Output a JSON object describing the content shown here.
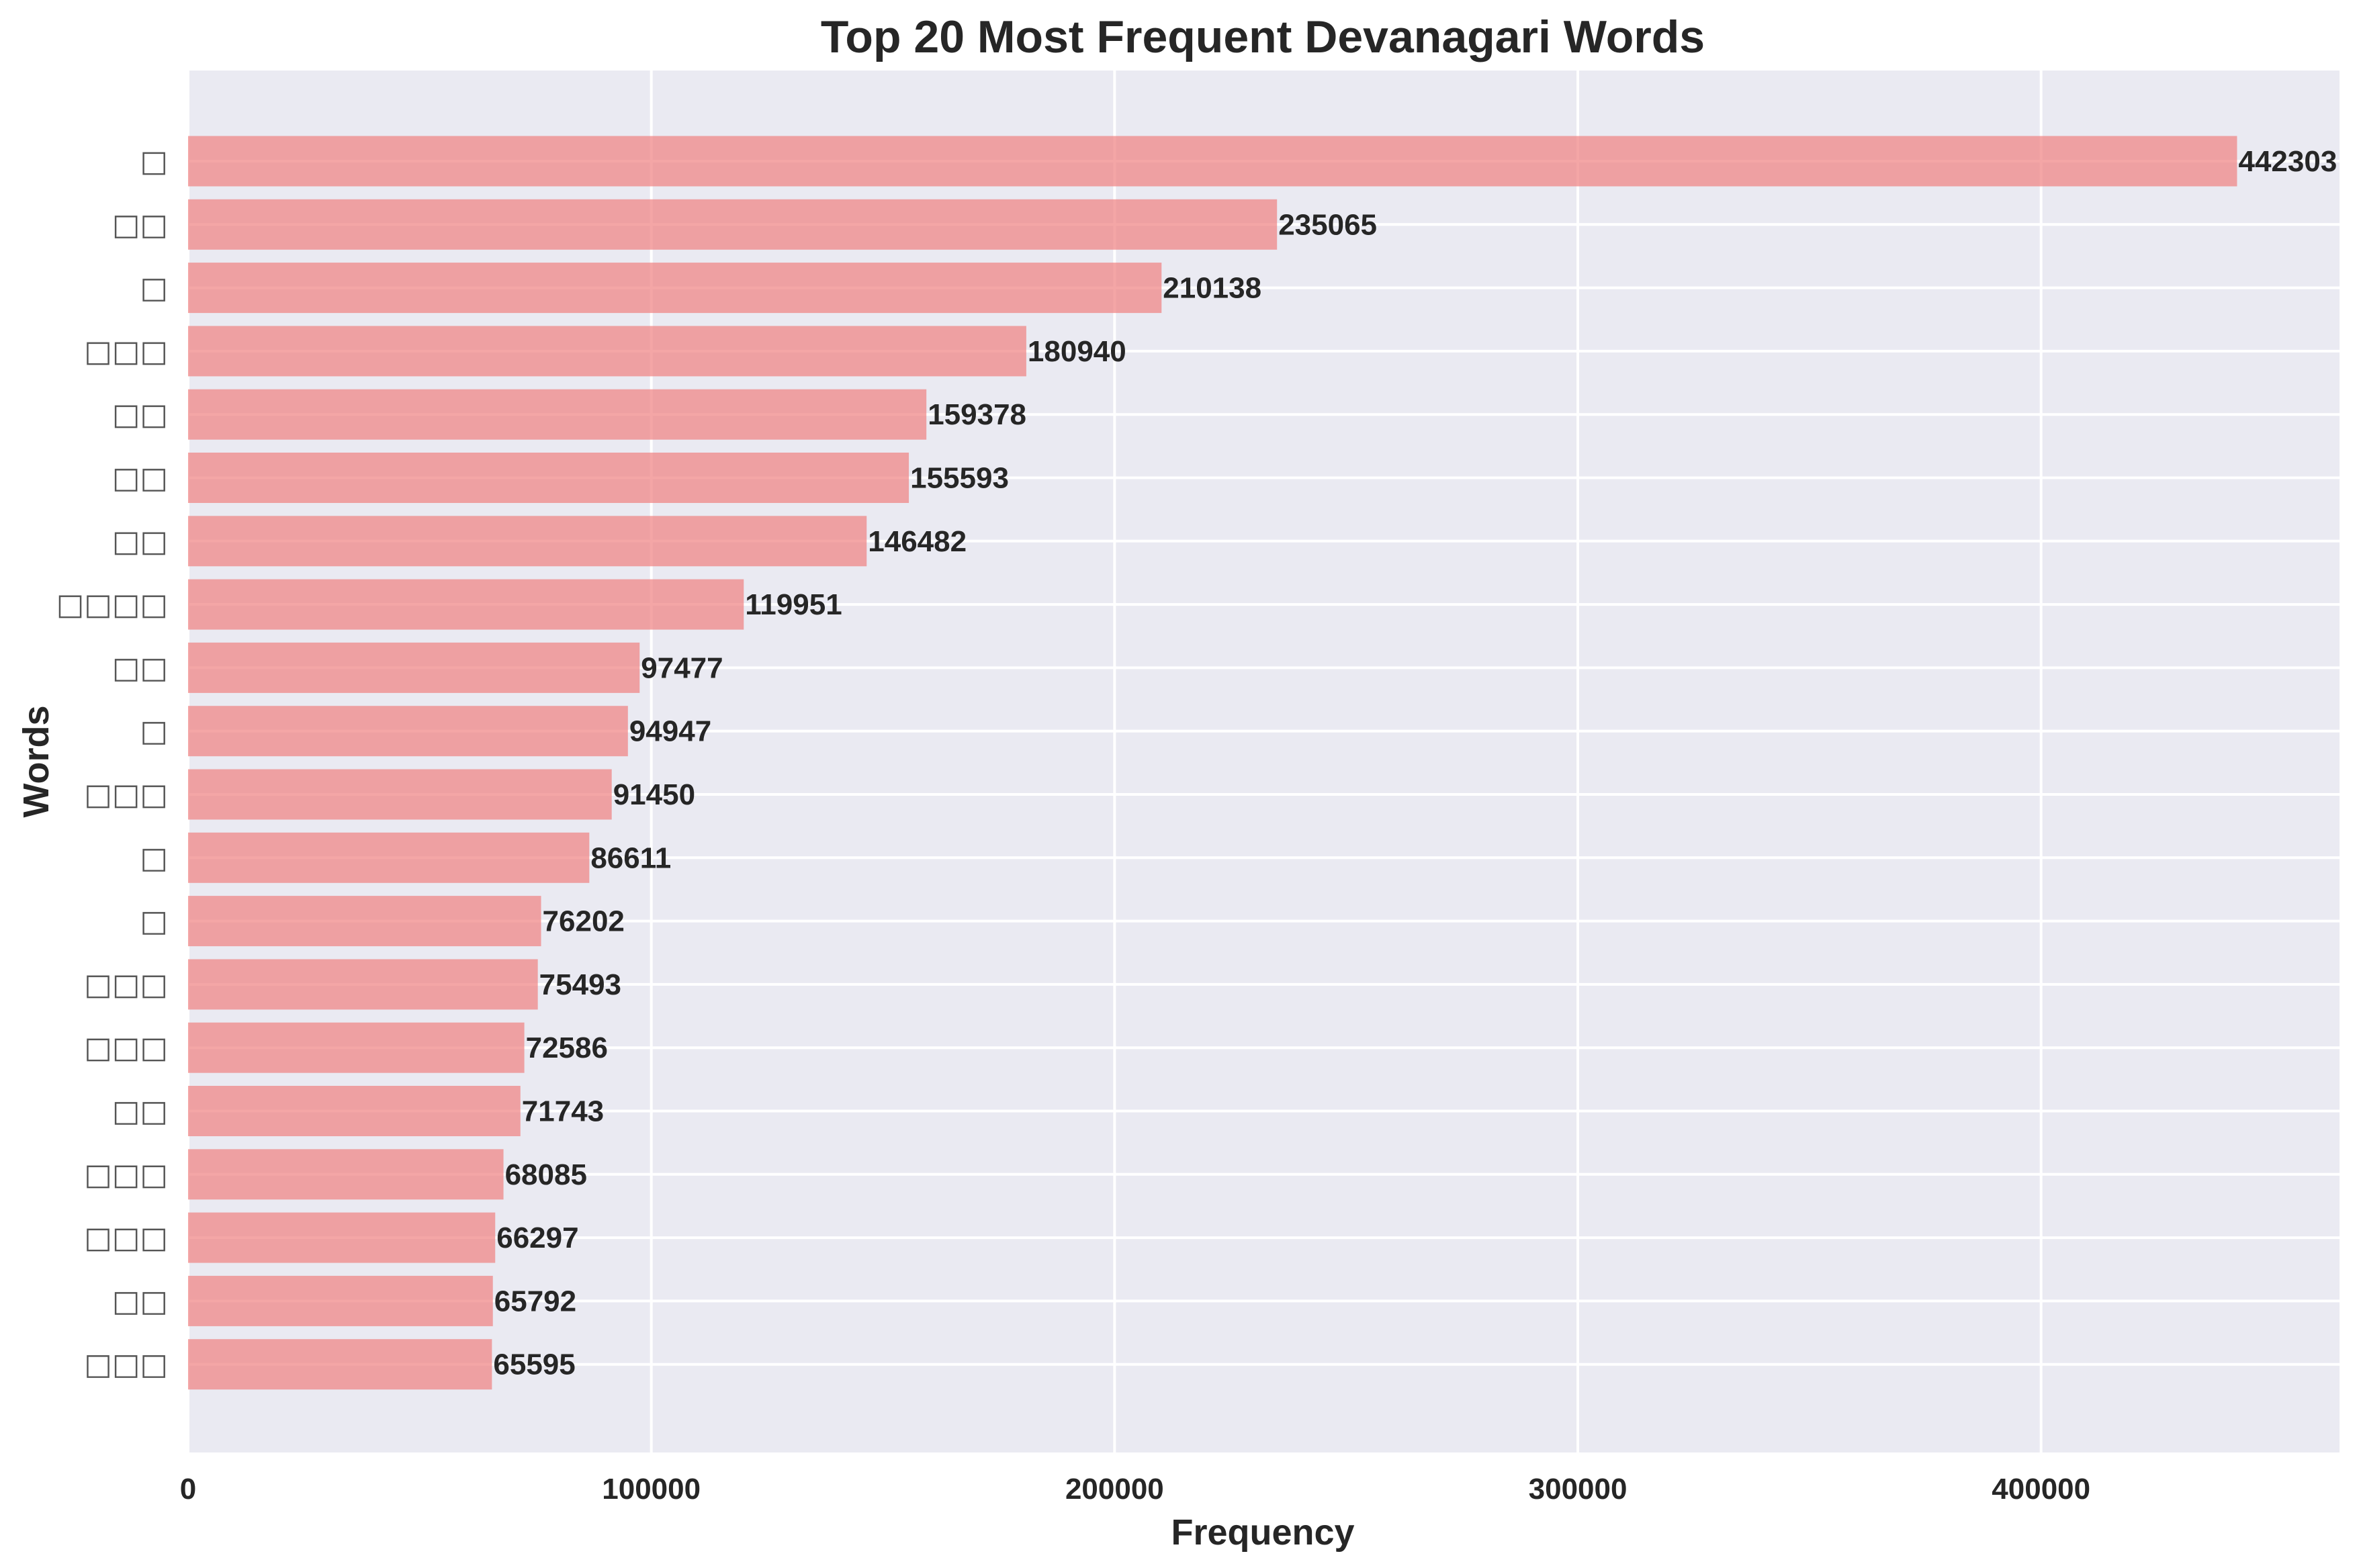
{
  "chart_data": {
    "type": "bar",
    "orientation": "horizontal",
    "title": "Top 20 Most Frequent Devanagari Words",
    "xlabel": "Frequency",
    "ylabel": "Words",
    "xlim": [
      0,
      464418
    ],
    "xticks": [
      0,
      100000,
      200000,
      300000,
      400000
    ],
    "grid": true,
    "bar_color": "#f08080",
    "background_color": "#eaeaf2",
    "grid_color": "#ffffff",
    "categories": [
      "□",
      "□□",
      "□",
      "□□□",
      "□□",
      "□□",
      "□□",
      "□□□□",
      "□□",
      "□",
      "□□□",
      "□",
      "□",
      "□□□",
      "□□□",
      "□□",
      "□□□",
      "□□□",
      "□□",
      "□□□"
    ],
    "values": [
      442303,
      235065,
      210138,
      180940,
      159378,
      155593,
      146482,
      119951,
      97477,
      94947,
      91450,
      86611,
      76202,
      75493,
      72586,
      71743,
      68085,
      66297,
      65792,
      65595
    ],
    "value_labels": [
      "442303",
      "235065",
      "210138",
      "180940",
      "159378",
      "155593",
      "146482",
      "119951",
      "97477",
      "94947",
      "91450",
      "86611",
      "76202",
      "75493",
      "72586",
      "71743",
      "68085",
      "66297",
      "65792",
      "65595"
    ],
    "xtick_labels": [
      "0",
      "100000",
      "200000",
      "300000",
      "400000"
    ]
  }
}
